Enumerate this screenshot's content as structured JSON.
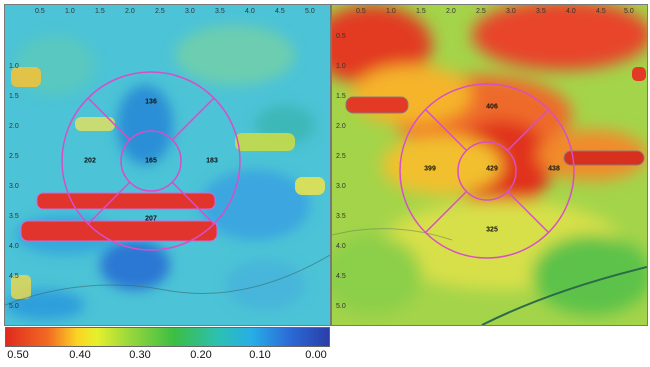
{
  "left_map": {
    "x_axis_labels": [
      "0.5",
      "1.0",
      "1.5",
      "2.0",
      "2.5",
      "3.0",
      "3.5",
      "4.0",
      "4.5",
      "5.0"
    ],
    "y_axis_labels": [
      "1.0",
      "1.5",
      "2.0",
      "2.5",
      "3.0",
      "3.5",
      "4.0",
      "4.5",
      "5.0"
    ],
    "sectors": {
      "superior": "136",
      "temporal": "202",
      "central": "165",
      "nasal": "183",
      "inferior": "207"
    }
  },
  "right_map": {
    "x_axis_labels": [
      "0.5",
      "1.0",
      "1.5",
      "2.0",
      "2.5",
      "3.0",
      "3.5",
      "4.0",
      "4.5",
      "5.0"
    ],
    "y_axis_labels": [
      "0.5",
      "1.0",
      "1.5",
      "2.0",
      "2.5",
      "3.0",
      "3.5",
      "4.0",
      "4.5",
      "5.0"
    ],
    "sectors": {
      "superior": "406",
      "temporal": "399",
      "central": "429",
      "nasal": "438",
      "inferior": "325"
    }
  },
  "colorbar": {
    "labels": [
      "0.50",
      "0.40",
      "0.30",
      "0.20",
      "0.10",
      "0.00"
    ]
  },
  "colors": {
    "ring": "#d64fc8",
    "left_base": "#4fc6d8",
    "right_base": "#9fd24a"
  }
}
